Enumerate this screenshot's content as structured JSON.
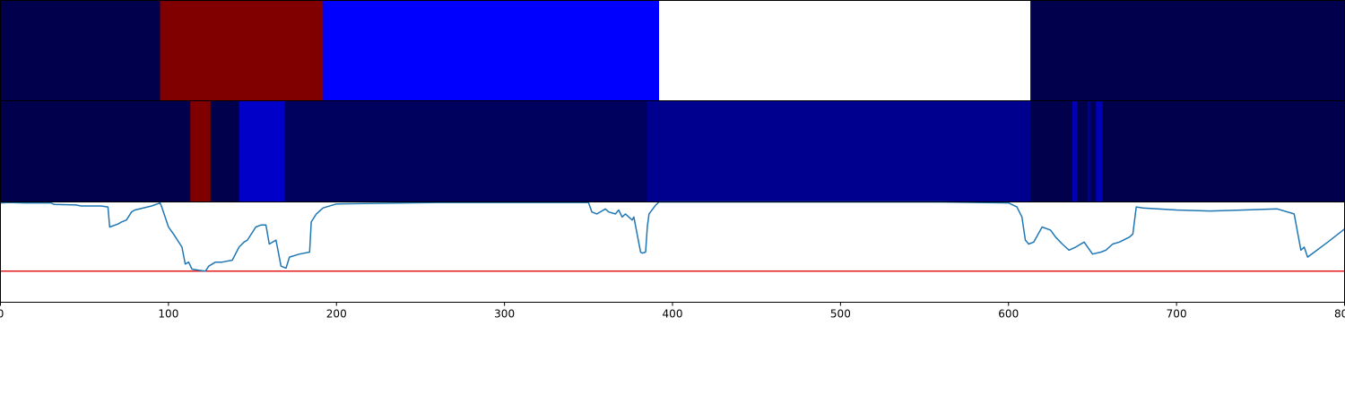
{
  "chart_data": {
    "type": "heatmap",
    "xlim": [
      0,
      800
    ],
    "x_ticks": [
      0,
      100,
      200,
      300,
      400,
      500,
      600,
      700,
      800
    ],
    "tick_labels": [
      "0",
      "100",
      "200",
      "300",
      "400",
      "500",
      "600",
      "700",
      "800"
    ],
    "colormap": "seismic",
    "band_top": {
      "segments": [
        {
          "start": 0,
          "end": 95,
          "color": "#00004c"
        },
        {
          "start": 95,
          "end": 192,
          "color": "#800000"
        },
        {
          "start": 192,
          "end": 392,
          "color": "#0000ff"
        },
        {
          "start": 392,
          "end": 613,
          "color": "#ffffff"
        },
        {
          "start": 613,
          "end": 800,
          "color": "#00004c"
        }
      ]
    },
    "band_middle": {
      "segments": [
        {
          "start": 0,
          "end": 113,
          "color": "#00004c"
        },
        {
          "start": 113,
          "end": 125,
          "color": "#800000"
        },
        {
          "start": 125,
          "end": 142,
          "color": "#00004c"
        },
        {
          "start": 142,
          "end": 169,
          "color": "#0000c8"
        },
        {
          "start": 169,
          "end": 385,
          "color": "#00005e"
        },
        {
          "start": 385,
          "end": 613,
          "color": "#00008f"
        },
        {
          "start": 613,
          "end": 638,
          "color": "#00004c"
        },
        {
          "start": 638,
          "end": 641,
          "color": "#0000b4"
        },
        {
          "start": 641,
          "end": 647,
          "color": "#00004c"
        },
        {
          "start": 647,
          "end": 649,
          "color": "#00008f"
        },
        {
          "start": 649,
          "end": 652,
          "color": "#00004c"
        },
        {
          "start": 652,
          "end": 656,
          "color": "#0000b4"
        },
        {
          "start": 656,
          "end": 800,
          "color": "#00004c"
        }
      ]
    },
    "line_panel": {
      "ylim": [
        0,
        1
      ],
      "threshold": 0.31,
      "threshold_color": "#e41a1c",
      "line_color": "#1f77b4",
      "series": {
        "x": [
          0,
          5,
          15,
          30,
          32,
          45,
          48,
          60,
          64,
          65,
          70,
          72,
          75,
          78,
          80,
          90,
          95,
          96,
          100,
          103,
          108,
          110,
          112,
          114,
          118,
          122,
          124,
          128,
          132,
          138,
          142,
          145,
          147,
          152,
          155,
          158,
          160,
          164,
          167,
          170,
          172,
          178,
          184,
          185,
          188,
          192,
          200,
          260,
          350,
          352,
          355,
          360,
          362,
          366,
          368,
          370,
          372,
          376,
          377,
          381,
          382,
          384,
          385,
          386,
          390,
          392,
          400,
          450,
          500,
          560,
          600,
          605,
          608,
          610,
          612,
          615,
          620,
          625,
          628,
          632,
          636,
          640,
          645,
          650,
          655,
          658,
          662,
          666,
          672,
          674,
          676,
          680,
          700,
          720,
          740,
          760,
          770,
          774,
          776,
          778,
          790,
          800
        ],
        "y": [
          0.99,
          0.995,
          0.99,
          0.99,
          0.975,
          0.97,
          0.96,
          0.96,
          0.95,
          0.75,
          0.78,
          0.8,
          0.82,
          0.9,
          0.92,
          0.96,
          0.99,
          0.95,
          0.75,
          0.68,
          0.55,
          0.38,
          0.4,
          0.33,
          0.32,
          0.31,
          0.36,
          0.4,
          0.4,
          0.42,
          0.55,
          0.6,
          0.62,
          0.75,
          0.77,
          0.77,
          0.58,
          0.62,
          0.36,
          0.34,
          0.45,
          0.48,
          0.5,
          0.8,
          0.88,
          0.94,
          0.98,
          0.995,
          0.995,
          0.9,
          0.88,
          0.93,
          0.9,
          0.88,
          0.92,
          0.85,
          0.88,
          0.82,
          0.85,
          0.5,
          0.49,
          0.5,
          0.75,
          0.88,
          0.97,
          1.0,
          1.0,
          1.0,
          1.0,
          1.0,
          0.99,
          0.95,
          0.85,
          0.62,
          0.58,
          0.6,
          0.75,
          0.72,
          0.65,
          0.58,
          0.52,
          0.55,
          0.6,
          0.48,
          0.5,
          0.52,
          0.58,
          0.6,
          0.65,
          0.68,
          0.95,
          0.94,
          0.92,
          0.91,
          0.92,
          0.93,
          0.88,
          0.52,
          0.55,
          0.45,
          0.6,
          0.73
        ]
      }
    }
  }
}
